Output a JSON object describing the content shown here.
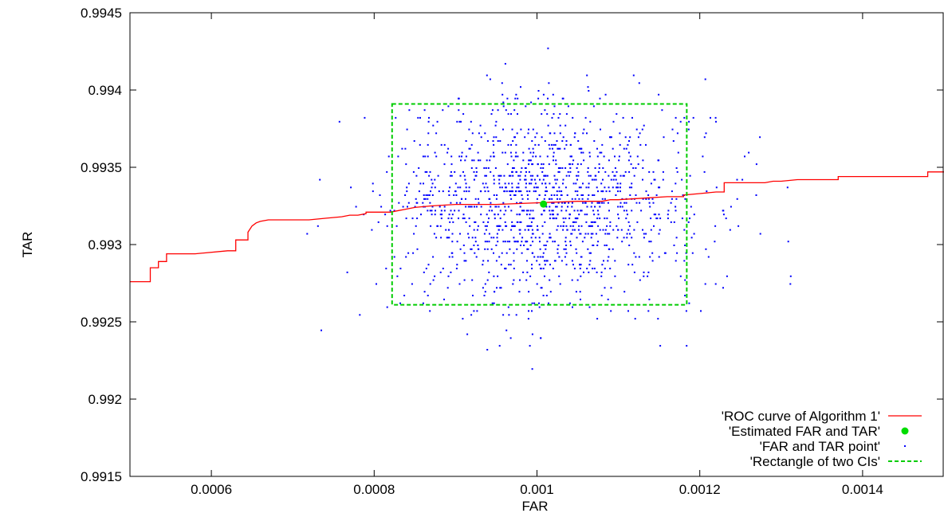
{
  "chart_data": {
    "type": "scatter",
    "title": "",
    "xlabel": "FAR",
    "ylabel": "TAR",
    "xlim": [
      0.0005,
      0.0015
    ],
    "ylim": [
      0.9915,
      0.9945
    ],
    "x_ticks": [
      0.0006,
      0.0008,
      0.001,
      0.0012,
      0.0014
    ],
    "x_tick_labels": [
      "0.0006",
      "0.0008",
      "0.001",
      "0.0012",
      "0.0014"
    ],
    "y_ticks": [
      0.9915,
      0.992,
      0.9925,
      0.993,
      0.9935,
      0.994,
      0.9945
    ],
    "y_tick_labels": [
      "0.9915",
      "0.992",
      "0.9925",
      "0.993",
      "0.9935",
      "0.994",
      "0.9945"
    ],
    "grid": false,
    "legend_position": "bottom-right",
    "legend_entries": [
      "'ROC curve of Algorithm 1'",
      "'Estimated FAR and TAR'",
      "'FAR and TAR point'",
      "'Rectangle of two CIs'"
    ],
    "colors": {
      "roc": "#ff0000",
      "estimate": "#00dd00",
      "points": "#0000ff",
      "rectangle": "#00cc00"
    },
    "roc_curve": {
      "x": [
        0.0005,
        0.000525,
        0.000525,
        0.000535,
        0.000535,
        0.000545,
        0.000545,
        0.000552,
        0.000552,
        0.00058,
        0.00062,
        0.00063,
        0.00063,
        0.000645,
        0.000645,
        0.00065,
        0.000655,
        0.00066,
        0.00067,
        0.00072,
        0.00074,
        0.00076,
        0.00077,
        0.00078,
        0.00079,
        0.00079,
        0.00082,
        0.00083,
        0.00084,
        0.00085,
        0.00087,
        0.0009,
        0.00095,
        0.001,
        0.00105,
        0.00108,
        0.00109,
        0.0011,
        0.00113,
        0.00116,
        0.00118,
        0.00118,
        0.0012,
        0.00122,
        0.00123,
        0.00123,
        0.00128,
        0.00129,
        0.0013,
        0.00132,
        0.00136,
        0.00137,
        0.00137,
        0.00146,
        0.00148,
        0.00148,
        0.0015
      ],
      "y": [
        0.99276,
        0.99276,
        0.99285,
        0.99285,
        0.99289,
        0.99289,
        0.99294,
        0.99294,
        0.99294,
        0.99294,
        0.99296,
        0.99296,
        0.99303,
        0.99303,
        0.99308,
        0.99312,
        0.99314,
        0.99315,
        0.99316,
        0.99316,
        0.99317,
        0.99318,
        0.99319,
        0.99319,
        0.9932,
        0.99321,
        0.99321,
        0.99322,
        0.99323,
        0.99324,
        0.99325,
        0.99326,
        0.99326,
        0.99327,
        0.99328,
        0.99328,
        0.99329,
        0.99329,
        0.9933,
        0.99331,
        0.99331,
        0.99332,
        0.99333,
        0.99334,
        0.99334,
        0.9934,
        0.9934,
        0.99341,
        0.99341,
        0.99342,
        0.99342,
        0.99342,
        0.99344,
        0.99344,
        0.99344,
        0.99347,
        0.99347
      ]
    },
    "estimate_point": {
      "x": 0.001008,
      "y": 0.993262
    },
    "ci_rectangle": {
      "x_min": 0.000822,
      "x_max": 0.001184,
      "y_min": 0.99261,
      "y_max": 0.99391
    },
    "far_tar_points": {
      "count": 1400,
      "x_center": 0.001008,
      "x_spread_sd": 9.7e-05,
      "y_center": 0.993262,
      "y_spread_sd": 0.00033,
      "seed": 7
    }
  }
}
